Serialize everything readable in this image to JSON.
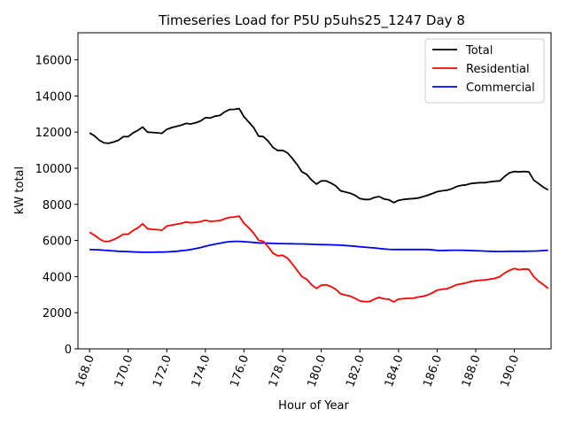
{
  "chart_data": {
    "type": "line",
    "title": "Timeseries Load for P5U p5uhs25_1247  Day 8",
    "xlabel": "Hour of Year",
    "ylabel": "kW total",
    "xlim": [
      167.4,
      191.9
    ],
    "ylim": [
      0,
      17500
    ],
    "xticks": [
      168.0,
      170.0,
      172.0,
      174.0,
      176.0,
      178.0,
      180.0,
      182.0,
      184.0,
      186.0,
      188.0,
      190.0
    ],
    "xtick_labels": [
      "168.0",
      "170.0",
      "172.0",
      "174.0",
      "176.0",
      "178.0",
      "180.0",
      "182.0",
      "184.0",
      "186.0",
      "188.0",
      "190.0"
    ],
    "yticks": [
      0,
      2000,
      4000,
      6000,
      8000,
      10000,
      12000,
      14000,
      16000
    ],
    "ytick_labels": [
      "0",
      "2000",
      "4000",
      "6000",
      "8000",
      "10000",
      "12000",
      "14000",
      "16000"
    ],
    "legend_position": "top-right",
    "series": [
      {
        "name": "Total",
        "color": "#000000",
        "x": [
          168.0,
          168.25,
          168.5,
          168.75,
          169.0,
          169.25,
          169.5,
          169.75,
          170.0,
          170.25,
          170.5,
          170.75,
          171.0,
          171.25,
          171.5,
          171.75,
          172.0,
          172.25,
          172.5,
          172.75,
          173.0,
          173.25,
          173.5,
          173.75,
          174.0,
          174.25,
          174.5,
          174.75,
          175.0,
          175.25,
          175.5,
          175.75,
          176.0,
          176.25,
          176.5,
          176.75,
          177.0,
          177.25,
          177.5,
          177.75,
          178.0,
          178.25,
          178.5,
          178.75,
          179.0,
          179.25,
          179.5,
          179.75,
          180.0,
          180.25,
          180.5,
          180.75,
          181.0,
          181.25,
          181.5,
          181.75,
          182.0,
          182.25,
          182.5,
          182.75,
          183.0,
          183.25,
          183.5,
          183.75,
          184.0,
          184.25,
          184.5,
          184.75,
          185.0,
          185.25,
          185.5,
          185.75,
          186.0,
          186.25,
          186.5,
          186.75,
          187.0,
          187.25,
          187.5,
          187.75,
          188.0,
          188.25,
          188.5,
          188.75,
          189.0,
          189.25,
          189.5,
          189.75,
          190.0,
          190.25,
          190.5,
          190.75,
          191.0,
          191.25,
          191.5,
          191.75
        ],
        "values": [
          11950,
          11800,
          11550,
          11400,
          11380,
          11450,
          11550,
          11750,
          11750,
          11950,
          12100,
          12280,
          12000,
          11980,
          11960,
          11930,
          12150,
          12250,
          12320,
          12380,
          12480,
          12450,
          12520,
          12620,
          12800,
          12780,
          12880,
          12920,
          13120,
          13250,
          13260,
          13300,
          12850,
          12550,
          12250,
          11780,
          11750,
          11500,
          11150,
          10980,
          10990,
          10850,
          10550,
          10200,
          9800,
          9650,
          9350,
          9120,
          9300,
          9300,
          9180,
          9020,
          8750,
          8680,
          8620,
          8500,
          8320,
          8270,
          8270,
          8380,
          8430,
          8300,
          8250,
          8100,
          8220,
          8270,
          8300,
          8320,
          8350,
          8420,
          8500,
          8600,
          8700,
          8750,
          8780,
          8860,
          8980,
          9050,
          9080,
          9150,
          9180,
          9200,
          9200,
          9250,
          9280,
          9300,
          9550,
          9750,
          9820,
          9800,
          9820,
          9800,
          9350,
          9150,
          8950,
          8800
        ]
      },
      {
        "name": "Residential",
        "color": "#ff0000",
        "x": [
          168.0,
          168.25,
          168.5,
          168.75,
          169.0,
          169.25,
          169.5,
          169.75,
          170.0,
          170.25,
          170.5,
          170.75,
          171.0,
          171.25,
          171.5,
          171.75,
          172.0,
          172.25,
          172.5,
          172.75,
          173.0,
          173.25,
          173.5,
          173.75,
          174.0,
          174.25,
          174.5,
          174.75,
          175.0,
          175.25,
          175.5,
          175.75,
          176.0,
          176.25,
          176.5,
          176.75,
          177.0,
          177.25,
          177.5,
          177.75,
          178.0,
          178.25,
          178.5,
          178.75,
          179.0,
          179.25,
          179.5,
          179.75,
          180.0,
          180.25,
          180.5,
          180.75,
          181.0,
          181.25,
          181.5,
          181.75,
          182.0,
          182.25,
          182.5,
          182.75,
          183.0,
          183.25,
          183.5,
          183.75,
          184.0,
          184.25,
          184.5,
          184.75,
          185.0,
          185.25,
          185.5,
          185.75,
          186.0,
          186.25,
          186.5,
          186.75,
          187.0,
          187.25,
          187.5,
          187.75,
          188.0,
          188.25,
          188.5,
          188.75,
          189.0,
          189.25,
          189.5,
          189.75,
          190.0,
          190.25,
          190.5,
          190.75,
          191.0,
          191.25,
          191.5,
          191.75
        ],
        "values": [
          6450,
          6300,
          6100,
          5950,
          5950,
          6050,
          6180,
          6350,
          6350,
          6550,
          6700,
          6920,
          6650,
          6620,
          6600,
          6570,
          6800,
          6850,
          6900,
          6950,
          7020,
          6980,
          7000,
          7050,
          7120,
          7060,
          7080,
          7100,
          7200,
          7280,
          7300,
          7350,
          6950,
          6700,
          6400,
          6020,
          5950,
          5650,
          5300,
          5150,
          5180,
          5020,
          4700,
          4350,
          4000,
          3850,
          3550,
          3350,
          3520,
          3550,
          3450,
          3300,
          3050,
          2980,
          2920,
          2800,
          2650,
          2620,
          2620,
          2750,
          2850,
          2770,
          2750,
          2600,
          2750,
          2780,
          2800,
          2800,
          2870,
          2900,
          2980,
          3100,
          3250,
          3300,
          3330,
          3420,
          3550,
          3600,
          3650,
          3730,
          3770,
          3800,
          3820,
          3860,
          3900,
          4000,
          4200,
          4350,
          4450,
          4380,
          4420,
          4400,
          4000,
          3750,
          3560,
          3350
        ]
      },
      {
        "name": "Commercial",
        "color": "#0000ff",
        "x": [
          168.0,
          168.25,
          168.5,
          168.75,
          169.0,
          169.25,
          169.5,
          169.75,
          170.0,
          170.25,
          170.5,
          170.75,
          171.0,
          171.25,
          171.5,
          171.75,
          172.0,
          172.25,
          172.5,
          172.75,
          173.0,
          173.25,
          173.5,
          173.75,
          174.0,
          174.25,
          174.5,
          174.75,
          175.0,
          175.25,
          175.5,
          175.75,
          176.0,
          176.25,
          176.5,
          176.75,
          177.0,
          177.25,
          177.5,
          177.75,
          178.0,
          178.25,
          178.5,
          178.75,
          179.0,
          179.25,
          179.5,
          179.75,
          180.0,
          180.25,
          180.5,
          180.75,
          181.0,
          181.25,
          181.5,
          181.75,
          182.0,
          182.25,
          182.5,
          182.75,
          183.0,
          183.25,
          183.5,
          183.75,
          184.0,
          184.25,
          184.5,
          184.75,
          185.0,
          185.25,
          185.5,
          185.75,
          186.0,
          186.25,
          186.5,
          186.75,
          187.0,
          187.25,
          187.5,
          187.75,
          188.0,
          188.25,
          188.5,
          188.75,
          189.0,
          189.25,
          189.5,
          189.75,
          190.0,
          190.25,
          190.5,
          190.75,
          191.0,
          191.25,
          191.5,
          191.75
        ],
        "values": [
          5500,
          5490,
          5480,
          5460,
          5440,
          5420,
          5400,
          5390,
          5380,
          5370,
          5360,
          5350,
          5350,
          5350,
          5360,
          5360,
          5370,
          5380,
          5400,
          5430,
          5460,
          5500,
          5550,
          5610,
          5680,
          5740,
          5800,
          5850,
          5900,
          5930,
          5950,
          5950,
          5930,
          5910,
          5890,
          5870,
          5860,
          5850,
          5840,
          5830,
          5830,
          5820,
          5820,
          5810,
          5810,
          5800,
          5790,
          5780,
          5770,
          5770,
          5760,
          5750,
          5740,
          5720,
          5700,
          5680,
          5650,
          5630,
          5610,
          5590,
          5560,
          5530,
          5510,
          5500,
          5500,
          5500,
          5500,
          5500,
          5500,
          5500,
          5500,
          5480,
          5450,
          5440,
          5450,
          5460,
          5460,
          5460,
          5450,
          5440,
          5430,
          5420,
          5410,
          5400,
          5390,
          5390,
          5390,
          5400,
          5400,
          5400,
          5400,
          5410,
          5410,
          5420,
          5440,
          5460
        ]
      }
    ]
  }
}
